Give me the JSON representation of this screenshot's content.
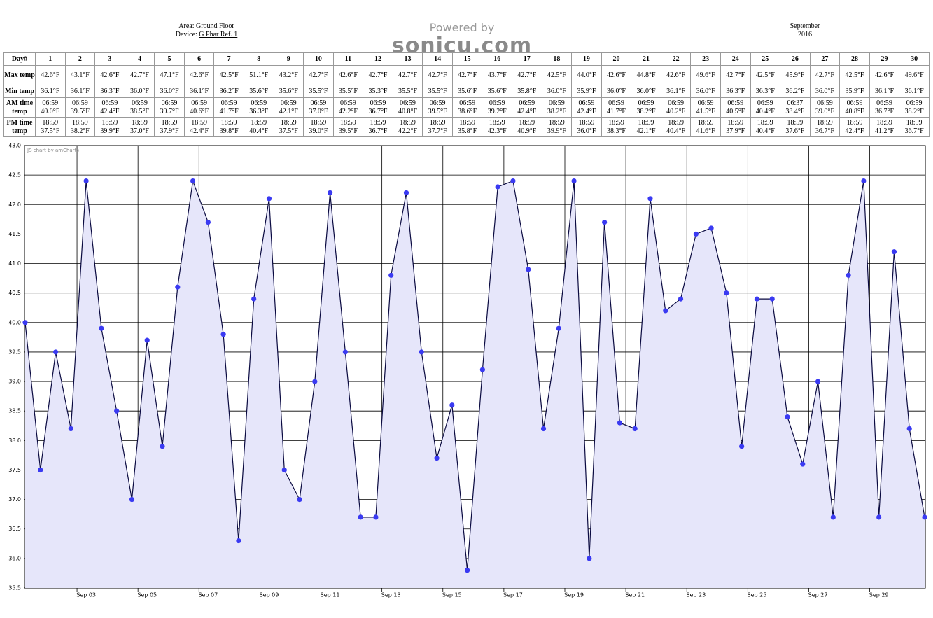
{
  "header": {
    "area_label": "Area:",
    "area": "Ground Floor",
    "device_label": "Device:",
    "device": "G Phar Ref. 1",
    "powered_by": "Powered by",
    "logo": "sonicu.com",
    "month": "September",
    "year": "2016"
  },
  "table": {
    "columns": [
      "Day#",
      "1",
      "2",
      "3",
      "4",
      "5",
      "6",
      "7",
      "8",
      "9",
      "10",
      "11",
      "12",
      "13",
      "14",
      "15",
      "16",
      "17",
      "18",
      "19",
      "20",
      "21",
      "22",
      "23",
      "24",
      "25",
      "26",
      "27",
      "28",
      "29",
      "30"
    ],
    "rows": [
      {
        "label": "Max temp",
        "cells": [
          "42.6°F",
          "43.1°F",
          "42.6°F",
          "42.7°F",
          "47.1°F",
          "42.6°F",
          "42.5°F",
          "51.1°F",
          "43.2°F",
          "42.7°F",
          "42.6°F",
          "42.7°F",
          "42.7°F",
          "42.7°F",
          "42.7°F",
          "43.7°F",
          "42.7°F",
          "42.5°F",
          "44.0°F",
          "42.6°F",
          "44.8°F",
          "42.6°F",
          "49.6°F",
          "42.7°F",
          "42.5°F",
          "45.9°F",
          "42.7°F",
          "42.5°F",
          "42.6°F",
          "49.6°F"
        ]
      },
      {
        "label": "Min temp",
        "cells": [
          "36.1°F",
          "36.1°F",
          "36.3°F",
          "36.0°F",
          "36.0°F",
          "36.1°F",
          "36.2°F",
          "35.6°F",
          "35.6°F",
          "35.5°F",
          "35.5°F",
          "35.3°F",
          "35.5°F",
          "35.5°F",
          "35.6°F",
          "35.6°F",
          "35.8°F",
          "36.0°F",
          "35.9°F",
          "36.0°F",
          "36.0°F",
          "36.1°F",
          "36.0°F",
          "36.3°F",
          "36.3°F",
          "36.2°F",
          "36.0°F",
          "35.9°F",
          "36.1°F",
          "36.1°F"
        ]
      },
      {
        "label": "AM time temp",
        "cells": [
          [
            "06:59",
            "40.0°F"
          ],
          [
            "06:59",
            "39.5°F"
          ],
          [
            "06:59",
            "42.4°F"
          ],
          [
            "06:59",
            "38.5°F"
          ],
          [
            "06:59",
            "39.7°F"
          ],
          [
            "06:59",
            "40.6°F"
          ],
          [
            "06:59",
            "41.7°F"
          ],
          [
            "06:59",
            "36.3°F"
          ],
          [
            "06:59",
            "42.1°F"
          ],
          [
            "06:59",
            "37.0°F"
          ],
          [
            "06:59",
            "42.2°F"
          ],
          [
            "06:59",
            "36.7°F"
          ],
          [
            "06:59",
            "40.8°F"
          ],
          [
            "06:59",
            "39.5°F"
          ],
          [
            "06:59",
            "38.6°F"
          ],
          [
            "06:59",
            "39.2°F"
          ],
          [
            "06:59",
            "42.4°F"
          ],
          [
            "06:59",
            "38.2°F"
          ],
          [
            "06:59",
            "42.4°F"
          ],
          [
            "06:59",
            "41.7°F"
          ],
          [
            "06:59",
            "38.2°F"
          ],
          [
            "06:59",
            "40.2°F"
          ],
          [
            "06:59",
            "41.5°F"
          ],
          [
            "06:59",
            "40.5°F"
          ],
          [
            "06:59",
            "40.4°F"
          ],
          [
            "06:37",
            "38.4°F"
          ],
          [
            "06:59",
            "39.0°F"
          ],
          [
            "06:59",
            "40.8°F"
          ],
          [
            "06:59",
            "36.7°F"
          ],
          [
            "06:59",
            "38.2°F"
          ]
        ]
      },
      {
        "label": "PM time temp",
        "cells": [
          [
            "18:59",
            "37.5°F"
          ],
          [
            "18:59",
            "38.2°F"
          ],
          [
            "18:59",
            "39.9°F"
          ],
          [
            "18:59",
            "37.0°F"
          ],
          [
            "18:59",
            "37.9°F"
          ],
          [
            "18:59",
            "42.4°F"
          ],
          [
            "18:59",
            "39.8°F"
          ],
          [
            "18:59",
            "40.4°F"
          ],
          [
            "18:59",
            "37.5°F"
          ],
          [
            "18:59",
            "39.0°F"
          ],
          [
            "18:59",
            "39.5°F"
          ],
          [
            "18:59",
            "36.7°F"
          ],
          [
            "18:59",
            "42.2°F"
          ],
          [
            "18:59",
            "37.7°F"
          ],
          [
            "18:59",
            "35.8°F"
          ],
          [
            "18:59",
            "42.3°F"
          ],
          [
            "18:59",
            "40.9°F"
          ],
          [
            "18:59",
            "39.9°F"
          ],
          [
            "18:59",
            "36.0°F"
          ],
          [
            "18:59",
            "38.3°F"
          ],
          [
            "18:59",
            "42.1°F"
          ],
          [
            "18:59",
            "40.4°F"
          ],
          [
            "18:59",
            "41.6°F"
          ],
          [
            "18:59",
            "37.9°F"
          ],
          [
            "18:59",
            "40.4°F"
          ],
          [
            "18:59",
            "37.6°F"
          ],
          [
            "18:59",
            "36.7°F"
          ],
          [
            "18:59",
            "42.4°F"
          ],
          [
            "18:59",
            "41.2°F"
          ],
          [
            "18:59",
            "36.7°F"
          ]
        ]
      }
    ]
  },
  "chart_data": {
    "type": "line",
    "watermark": "JS chart by amCharts",
    "categories": [
      null,
      null,
      null,
      null,
      "Sep 03",
      null,
      null,
      null,
      "Sep 05",
      null,
      null,
      null,
      "Sep 07",
      null,
      null,
      null,
      "Sep 09",
      null,
      null,
      null,
      "Sep 11",
      null,
      null,
      null,
      "Sep 13",
      null,
      null,
      null,
      "Sep 15",
      null,
      null,
      null,
      "Sep 17",
      null,
      null,
      null,
      "Sep 19",
      null,
      null,
      null,
      "Sep 21",
      null,
      null,
      null,
      "Sep 23",
      null,
      null,
      null,
      "Sep 25",
      null,
      null,
      null,
      "Sep 27",
      null,
      null,
      null,
      "Sep 29",
      null,
      null,
      null
    ],
    "values": [
      40.0,
      37.5,
      39.5,
      38.2,
      42.4,
      39.9,
      38.5,
      37.0,
      39.7,
      37.9,
      40.6,
      42.4,
      41.7,
      39.8,
      36.3,
      40.4,
      42.1,
      37.5,
      37.0,
      39.0,
      42.2,
      39.5,
      36.7,
      36.7,
      40.8,
      42.2,
      39.5,
      37.7,
      38.6,
      35.8,
      39.2,
      42.3,
      42.4,
      40.9,
      38.2,
      39.9,
      42.4,
      36.0,
      41.7,
      38.3,
      38.2,
      42.1,
      40.2,
      40.4,
      41.5,
      41.6,
      40.5,
      37.9,
      40.4,
      40.4,
      38.4,
      37.6,
      39.0,
      36.7,
      40.8,
      42.4,
      36.7,
      41.2,
      38.2,
      36.7
    ],
    "color": "#3a3af2",
    "line_color": "#0a0a40",
    "fill_color": "#e6e6fa",
    "ylim": [
      35.5,
      43
    ],
    "yticks": [
      35.5,
      {
        "value": 36,
        "label": "36.0"
      },
      36.5,
      {
        "value": 37,
        "label": "37.0"
      },
      37.5,
      {
        "value": 38,
        "label": "38.0"
      },
      38.5,
      {
        "value": 39,
        "label": "39.0"
      },
      39.5,
      {
        "value": 40,
        "label": "40.0"
      },
      40.5,
      {
        "value": 41,
        "label": "41.0"
      },
      41.5,
      {
        "value": 42,
        "label": "42.0"
      },
      42.5,
      {
        "value": 43,
        "label": "43.0"
      }
    ],
    "grid": true
  }
}
